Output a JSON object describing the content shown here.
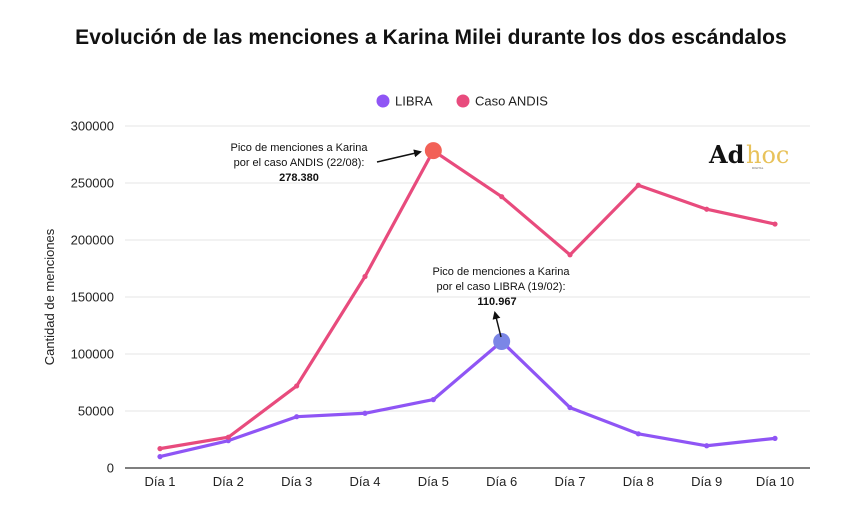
{
  "title": "Evolución de las menciones a Karina Milei durante los dos escándalos",
  "logo": {
    "part1": "Ad",
    "part2": "hoc",
    "sub": "DIGITAL"
  },
  "chart_data": {
    "type": "line",
    "categories": [
      "Día 1",
      "Día 2",
      "Día 3",
      "Día 4",
      "Día 5",
      "Día 6",
      "Día 7",
      "Día 8",
      "Día 9",
      "Día 10"
    ],
    "series": [
      {
        "name": "LIBRA",
        "color": "#8f55f5",
        "values": [
          10000,
          24000,
          45000,
          48000,
          60000,
          110967,
          53000,
          30000,
          19500,
          26000
        ]
      },
      {
        "name": "Caso ANDIS",
        "color": "#e84b7d",
        "values": [
          17000,
          27000,
          72000,
          168000,
          278380,
          238000,
          187000,
          248000,
          227000,
          214000
        ]
      }
    ],
    "xlabel": "",
    "ylabel": "Cantidad de menciones",
    "ylim": [
      0,
      300000
    ],
    "yticks": [
      "0",
      "50000",
      "100000",
      "150000",
      "200000",
      "250000",
      "300000"
    ],
    "grid": true,
    "legend_position": "top-center",
    "annotations": [
      {
        "series": "Caso ANDIS",
        "index": 4,
        "lines": [
          "Pico de menciones a Karina",
          "por el caso ANDIS (22/08):"
        ],
        "value_label": "278.380",
        "marker_color": "#f26157"
      },
      {
        "series": "LIBRA",
        "index": 5,
        "lines": [
          "Pico de menciones a Karina",
          "por el caso LIBRA (19/02):"
        ],
        "value_label": "110.967",
        "marker_color": "#7b86e6"
      }
    ]
  }
}
